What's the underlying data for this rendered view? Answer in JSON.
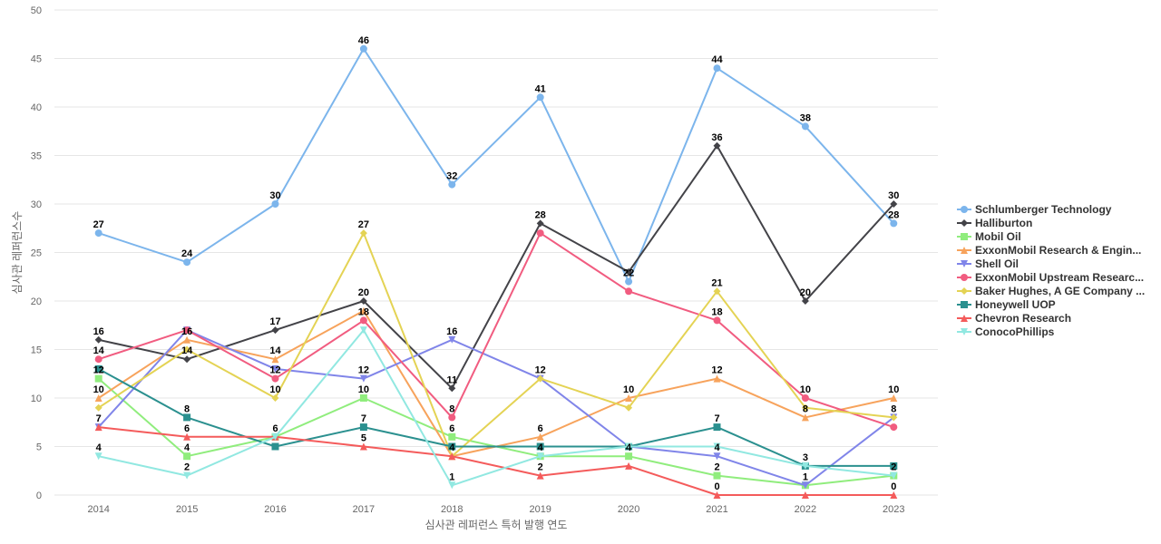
{
  "chart_data": {
    "type": "line",
    "xlabel": "심사관 레퍼런스 특허 발행 연도",
    "ylabel": "심사관 레퍼런스수",
    "ylim": [
      0,
      50
    ],
    "yticks": [
      0,
      5,
      10,
      15,
      20,
      25,
      30,
      35,
      40,
      45,
      50
    ],
    "grid": true,
    "legend_position": "right",
    "categories": [
      "2014",
      "2015",
      "2016",
      "2017",
      "2018",
      "2019",
      "2020",
      "2021",
      "2022",
      "2023"
    ],
    "series": [
      {
        "name": "Schlumberger Technology",
        "color": "#7cb5ec",
        "marker": "circle",
        "values": [
          27,
          24,
          30,
          46,
          32,
          41,
          22,
          44,
          38,
          28
        ]
      },
      {
        "name": "Halliburton",
        "color": "#434348",
        "marker": "diamond",
        "values": [
          16,
          14,
          17,
          20,
          11,
          28,
          23,
          36,
          20,
          30
        ]
      },
      {
        "name": "Mobil Oil",
        "color": "#90ed7d",
        "marker": "square",
        "values": [
          12,
          4,
          6,
          10,
          6,
          4,
          4,
          2,
          1,
          2
        ]
      },
      {
        "name": "ExxonMobil Research & Engin...",
        "color": "#f7a35c",
        "marker": "triangle",
        "values": [
          10,
          16,
          14,
          19,
          4,
          6,
          10,
          12,
          8,
          10
        ]
      },
      {
        "name": "Shell Oil",
        "color": "#8085e9",
        "marker": "triangle-down",
        "values": [
          7,
          17,
          13,
          12,
          16,
          12,
          5,
          4,
          1,
          8
        ]
      },
      {
        "name": "ExxonMobil Upstream Researc...",
        "color": "#f15c80",
        "marker": "circle",
        "values": [
          14,
          17,
          12,
          18,
          8,
          27,
          21,
          18,
          10,
          7
        ]
      },
      {
        "name": "Baker Hughes, A GE Company ...",
        "color": "#e4d354",
        "marker": "diamond",
        "values": [
          9,
          15,
          10,
          27,
          4,
          12,
          9,
          21,
          9,
          8
        ]
      },
      {
        "name": "Honeywell UOP",
        "color": "#2b908f",
        "marker": "square",
        "values": [
          13,
          8,
          5,
          7,
          5,
          5,
          5,
          7,
          3,
          3
        ]
      },
      {
        "name": "Chevron Research",
        "color": "#f45b5b",
        "marker": "triangle",
        "values": [
          7,
          6,
          6,
          5,
          4,
          2,
          3,
          0,
          0,
          0
        ]
      },
      {
        "name": "ConocoPhillips",
        "color": "#91e8e1",
        "marker": "triangle-down",
        "values": [
          4,
          2,
          6,
          17,
          1,
          4,
          5,
          5,
          3,
          2
        ]
      }
    ],
    "data_labels": [
      {
        "x": "2014",
        "text": "27",
        "value": 27
      },
      {
        "x": "2014",
        "text": "16",
        "value": 16
      },
      {
        "x": "2014",
        "text": "14",
        "value": 14
      },
      {
        "x": "2014",
        "text": "12",
        "value": 12
      },
      {
        "x": "2014",
        "text": "10",
        "value": 10
      },
      {
        "x": "2014",
        "text": "7",
        "value": 7
      },
      {
        "x": "2014",
        "text": "4",
        "value": 4
      },
      {
        "x": "2015",
        "text": "24",
        "value": 24
      },
      {
        "x": "2015",
        "text": "16",
        "value": 16
      },
      {
        "x": "2015",
        "text": "14",
        "value": 14
      },
      {
        "x": "2015",
        "text": "8",
        "value": 8
      },
      {
        "x": "2015",
        "text": "6",
        "value": 6
      },
      {
        "x": "2015",
        "text": "4",
        "value": 4
      },
      {
        "x": "2015",
        "text": "2",
        "value": 2
      },
      {
        "x": "2016",
        "text": "30",
        "value": 30
      },
      {
        "x": "2016",
        "text": "17",
        "value": 17
      },
      {
        "x": "2016",
        "text": "14",
        "value": 14
      },
      {
        "x": "2016",
        "text": "12",
        "value": 12
      },
      {
        "x": "2016",
        "text": "10",
        "value": 10
      },
      {
        "x": "2016",
        "text": "6",
        "value": 6
      },
      {
        "x": "2017",
        "text": "46",
        "value": 46
      },
      {
        "x": "2017",
        "text": "27",
        "value": 27
      },
      {
        "x": "2017",
        "text": "20",
        "value": 20
      },
      {
        "x": "2017",
        "text": "18",
        "value": 18
      },
      {
        "x": "2017",
        "text": "12",
        "value": 12
      },
      {
        "x": "2017",
        "text": "10",
        "value": 10
      },
      {
        "x": "2017",
        "text": "7",
        "value": 7
      },
      {
        "x": "2017",
        "text": "5",
        "value": 5
      },
      {
        "x": "2018",
        "text": "32",
        "value": 32
      },
      {
        "x": "2018",
        "text": "16",
        "value": 16
      },
      {
        "x": "2018",
        "text": "11",
        "value": 11
      },
      {
        "x": "2018",
        "text": "8",
        "value": 8
      },
      {
        "x": "2018",
        "text": "6",
        "value": 6
      },
      {
        "x": "2018",
        "text": "4",
        "value": 4
      },
      {
        "x": "2018",
        "text": "1",
        "value": 1
      },
      {
        "x": "2019",
        "text": "41",
        "value": 41
      },
      {
        "x": "2019",
        "text": "28",
        "value": 28
      },
      {
        "x": "2019",
        "text": "12",
        "value": 12
      },
      {
        "x": "2019",
        "text": "6",
        "value": 6
      },
      {
        "x": "2019",
        "text": "4",
        "value": 4
      },
      {
        "x": "2019",
        "text": "2",
        "value": 2
      },
      {
        "x": "2020",
        "text": "22",
        "value": 22
      },
      {
        "x": "2020",
        "text": "10",
        "value": 10
      },
      {
        "x": "2020",
        "text": "4",
        "value": 4
      },
      {
        "x": "2021",
        "text": "44",
        "value": 44
      },
      {
        "x": "2021",
        "text": "36",
        "value": 36
      },
      {
        "x": "2021",
        "text": "21",
        "value": 21
      },
      {
        "x": "2021",
        "text": "18",
        "value": 18
      },
      {
        "x": "2021",
        "text": "12",
        "value": 12
      },
      {
        "x": "2021",
        "text": "7",
        "value": 7
      },
      {
        "x": "2021",
        "text": "4",
        "value": 4
      },
      {
        "x": "2021",
        "text": "2",
        "value": 2
      },
      {
        "x": "2021",
        "text": "0",
        "value": 0
      },
      {
        "x": "2022",
        "text": "38",
        "value": 38
      },
      {
        "x": "2022",
        "text": "20",
        "value": 20
      },
      {
        "x": "2022",
        "text": "10",
        "value": 10
      },
      {
        "x": "2022",
        "text": "8",
        "value": 8
      },
      {
        "x": "2022",
        "text": "3",
        "value": 3
      },
      {
        "x": "2022",
        "text": "1",
        "value": 1
      },
      {
        "x": "2023",
        "text": "30",
        "value": 30
      },
      {
        "x": "2023",
        "text": "28",
        "value": 28
      },
      {
        "x": "2023",
        "text": "10",
        "value": 10
      },
      {
        "x": "2023",
        "text": "8",
        "value": 8
      },
      {
        "x": "2023",
        "text": "2",
        "value": 2
      },
      {
        "x": "2023",
        "text": "0",
        "value": 0
      }
    ]
  }
}
